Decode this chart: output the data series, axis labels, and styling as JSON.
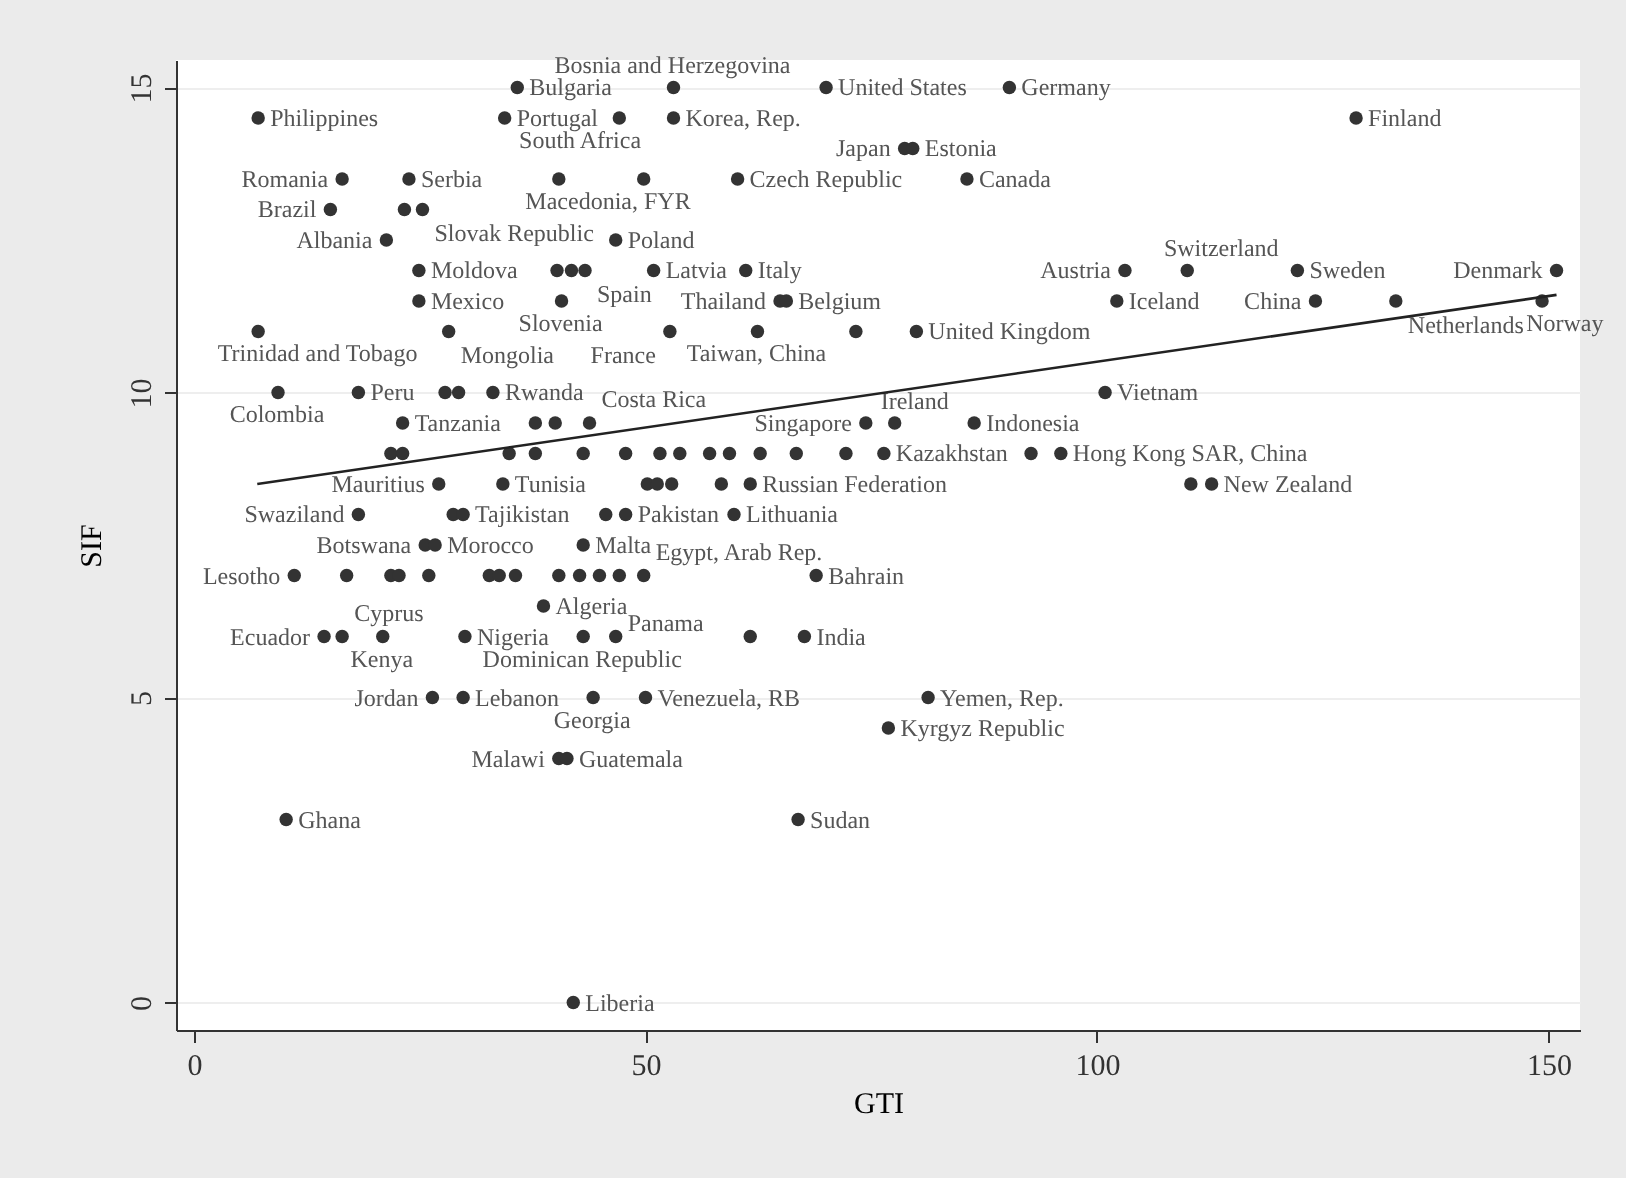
{
  "chart_data": {
    "type": "scatter",
    "xlabel": "GTI",
    "ylabel": "SIF",
    "xlim": [
      -2,
      153.5
    ],
    "ylim": [
      -0.45,
      15.45
    ],
    "xticks": [
      0,
      50,
      100,
      150
    ],
    "yticks": [
      0,
      5,
      10,
      15
    ],
    "grid": "y",
    "series": [
      {
        "color": "#333333",
        "x": [
          35.8,
          53.1,
          70.0,
          90.3,
          7.1,
          34.4,
          47.1,
          53.1,
          128.7,
          78.7,
          79.6,
          16.4,
          23.8,
          40.4,
          49.8,
          60.2,
          85.6,
          15.1,
          23.3,
          25.3,
          21.3,
          46.7,
          24.9,
          40.2,
          41.8,
          43.3,
          50.9,
          61.1,
          103.1,
          110.0,
          122.2,
          150.9,
          24.9,
          40.7,
          64.9,
          65.6,
          102.2,
          124.2,
          133.1,
          149.3,
          7.1,
          28.2,
          52.7,
          62.4,
          73.3,
          80.0,
          9.3,
          18.2,
          27.8,
          29.3,
          33.1,
          100.9,
          23.1,
          37.8,
          40.0,
          43.8,
          74.4,
          77.6,
          86.4,
          21.8,
          23.1,
          34.9,
          37.8,
          43.1,
          47.8,
          51.6,
          53.8,
          57.1,
          59.3,
          62.7,
          66.7,
          72.2,
          76.4,
          92.7,
          96.0,
          27.1,
          34.2,
          50.2,
          51.3,
          52.9,
          58.4,
          61.6,
          110.4,
          112.7,
          18.2,
          28.7,
          29.8,
          45.6,
          47.8,
          59.8,
          25.6,
          26.7,
          43.1,
          11.1,
          16.9,
          21.8,
          22.7,
          26.0,
          32.7,
          33.8,
          35.6,
          40.4,
          42.7,
          44.9,
          47.1,
          49.8,
          68.9,
          38.7,
          14.4,
          16.4,
          20.9,
          30.0,
          43.1,
          46.7,
          61.6,
          67.6,
          26.4,
          29.8,
          44.2,
          50.0,
          81.3,
          76.9,
          40.4,
          41.3,
          10.2,
          66.9,
          42.0
        ],
        "values": [
          15,
          15,
          15,
          15,
          14.5,
          14.5,
          14.5,
          14.5,
          14.5,
          14,
          14,
          13.5,
          13.5,
          13.5,
          13.5,
          13.5,
          13.5,
          13,
          13,
          13,
          12.5,
          12.5,
          12,
          12,
          12,
          12,
          12,
          12,
          12,
          12,
          12,
          12,
          11.5,
          11.5,
          11.5,
          11.5,
          11.5,
          11.5,
          11.5,
          11.5,
          11,
          11,
          11,
          11,
          11,
          11,
          10,
          10,
          10,
          10,
          10,
          10,
          9.5,
          9.5,
          9.5,
          9.5,
          9.5,
          9.5,
          9.5,
          9,
          9,
          9,
          9,
          9,
          9,
          9,
          9,
          9,
          9,
          9,
          9,
          9,
          9,
          9,
          9,
          8.5,
          8.5,
          8.5,
          8.5,
          8.5,
          8.5,
          8.5,
          8.5,
          8.5,
          8,
          8,
          8,
          8,
          8,
          8,
          7.5,
          7.5,
          7.5,
          7,
          7,
          7,
          7,
          7,
          7,
          7,
          7,
          7,
          7,
          7,
          7,
          7,
          7,
          6.5,
          6,
          6,
          6,
          6,
          6,
          6,
          6,
          6,
          5,
          5,
          5,
          5,
          5,
          4.5,
          4,
          4,
          3,
          3,
          0
        ],
        "value_labels": [
          "Bulgaria",
          "Bosnia and Herzegovina",
          "United States",
          "Germany",
          "Philippines",
          "Portugal",
          "South Africa",
          "Korea, Rep.",
          "Finland",
          "Japan",
          "Estonia",
          "Romania",
          "Serbia",
          "Macedonia, FYR",
          null,
          "Czech Republic",
          "Canada",
          "Brazil",
          null,
          "Slovak Republic",
          "Albania",
          "Poland",
          "Moldova",
          null,
          null,
          "Spain",
          "Latvia",
          "Italy",
          "Austria",
          "Switzerland",
          "Sweden",
          "Denmark",
          "Mexico",
          "Slovenia",
          "Thailand",
          "Belgium",
          "Iceland",
          "China",
          "Netherlands",
          "Norway",
          "Trinidad and Tobago",
          "Mongolia",
          "France",
          "Taiwan, China",
          null,
          "United Kingdom",
          "Colombia",
          "Peru",
          null,
          null,
          "Rwanda",
          "Vietnam",
          "Tanzania",
          null,
          null,
          "Costa Rica",
          "Singapore",
          "Ireland",
          "Indonesia",
          null,
          null,
          null,
          null,
          null,
          null,
          null,
          null,
          null,
          null,
          null,
          null,
          null,
          "Kazakhstan",
          null,
          "Hong Kong SAR, China",
          "Mauritius",
          "Tunisia",
          null,
          null,
          null,
          null,
          "Russian Federation",
          null,
          "New Zealand",
          "Swaziland",
          null,
          "Tajikistan",
          null,
          "Pakistan",
          "Lithuania",
          "Botswana",
          "Morocco",
          "Malta",
          "Lesotho",
          null,
          null,
          null,
          null,
          null,
          null,
          null,
          null,
          null,
          null,
          null,
          "Egypt, Arab Rep.",
          "Bahrain",
          "Algeria",
          "Ecuador",
          "Cyprus",
          "Kenya",
          "Nigeria",
          "Dominican Republic",
          "Panama",
          null,
          "India",
          "Jordan",
          "Lebanon",
          "Georgia",
          "Venezuela, RB",
          "Yemen, Rep.",
          "Kyrgyz Republic",
          "Malawi",
          "Guatemala",
          "Ghana",
          "Sudan",
          "Liberia"
        ]
      },
      {
        "type": "line",
        "color": "#222222",
        "x": [
          7,
          150.9
        ],
        "values": [
          8.5,
          11.6
        ]
      }
    ]
  }
}
